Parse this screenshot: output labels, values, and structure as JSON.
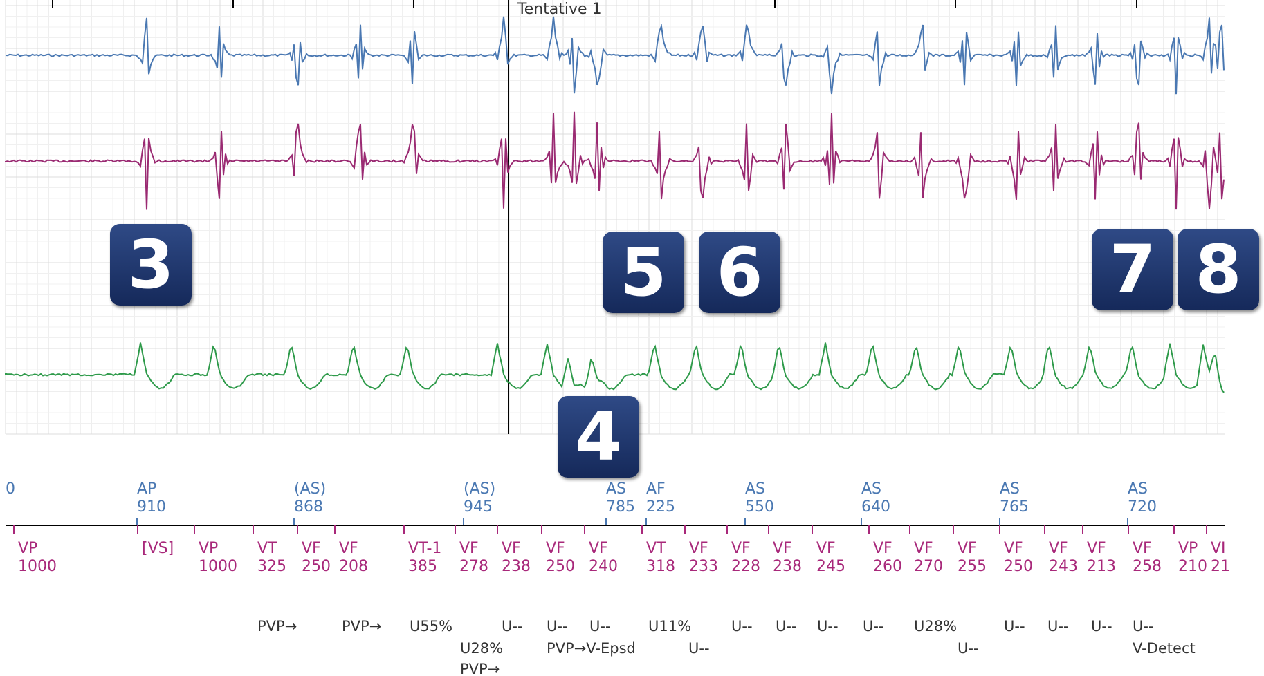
{
  "header": {
    "tentative_label": "Tentative 1"
  },
  "colors": {
    "rv_tip_ring": "#4a78b2",
    "rv_coil": "#9a2a72",
    "far_field": "#2e9a4a",
    "atrial_marker": "#4a78b2",
    "ventricular_marker": "#a8287a",
    "annotation": "#333333",
    "badge": "#1e3566"
  },
  "badges": [
    {
      "label": "3",
      "near": "channel-2 start, beat 3"
    },
    {
      "label": "4",
      "near": "far-field channel"
    },
    {
      "label": "5",
      "near": "channel-2 mid"
    },
    {
      "label": "6",
      "near": "channel-2 mid"
    },
    {
      "label": "7",
      "near": "channel-2 end"
    },
    {
      "label": "8",
      "near": "channel-2 end"
    }
  ],
  "atrial_markers": [
    {
      "label": "0",
      "interval": ""
    },
    {
      "label": "AP",
      "interval": "910"
    },
    {
      "label": "(AS)",
      "interval": "868"
    },
    {
      "label": "(AS)",
      "interval": "945"
    },
    {
      "label": "AS",
      "interval": "785"
    },
    {
      "label": "AF",
      "interval": "225"
    },
    {
      "label": "AS",
      "interval": "550"
    },
    {
      "label": "AS",
      "interval": "640"
    },
    {
      "label": "AS",
      "interval": "765"
    },
    {
      "label": "AS",
      "interval": "720"
    }
  ],
  "ventricular_markers": [
    {
      "label": "VP",
      "interval": "1000"
    },
    {
      "label": "[VS]",
      "interval": ""
    },
    {
      "label": "VP",
      "interval": "1000"
    },
    {
      "label": "VT",
      "interval": "325"
    },
    {
      "label": "VF",
      "interval": "250"
    },
    {
      "label": "VF",
      "interval": "208"
    },
    {
      "label": "VT-1",
      "interval": "385"
    },
    {
      "label": "VF",
      "interval": "278"
    },
    {
      "label": "VF",
      "interval": "238"
    },
    {
      "label": "VF",
      "interval": "250"
    },
    {
      "label": "VF",
      "interval": "240"
    },
    {
      "label": "VT",
      "interval": "318"
    },
    {
      "label": "VF",
      "interval": "233"
    },
    {
      "label": "VF",
      "interval": "228"
    },
    {
      "label": "VF",
      "interval": "238"
    },
    {
      "label": "VF",
      "interval": "245"
    },
    {
      "label": "VF",
      "interval": "260"
    },
    {
      "label": "VF",
      "interval": "270"
    },
    {
      "label": "VF",
      "interval": "255"
    },
    {
      "label": "VF",
      "interval": "250"
    },
    {
      "label": "VF",
      "interval": "243"
    },
    {
      "label": "VF",
      "interval": "213"
    },
    {
      "label": "VF",
      "interval": "258"
    },
    {
      "label": "VP",
      "interval": "210"
    },
    {
      "label": "VI",
      "interval": "21"
    }
  ],
  "annotations_row1": [
    "PVP→",
    "PVP→",
    "U55%",
    "U--",
    "U--",
    "U--",
    "U11%",
    "U--",
    "U--",
    "U--",
    "U--",
    "U28%",
    "U--",
    "U--",
    "U--",
    "U--"
  ],
  "annotations_row2": [
    "U28%",
    "PVP→V-Epsd",
    "U--",
    "U--",
    "V-Detect"
  ],
  "annotations_row3": [
    "PVP→"
  ]
}
